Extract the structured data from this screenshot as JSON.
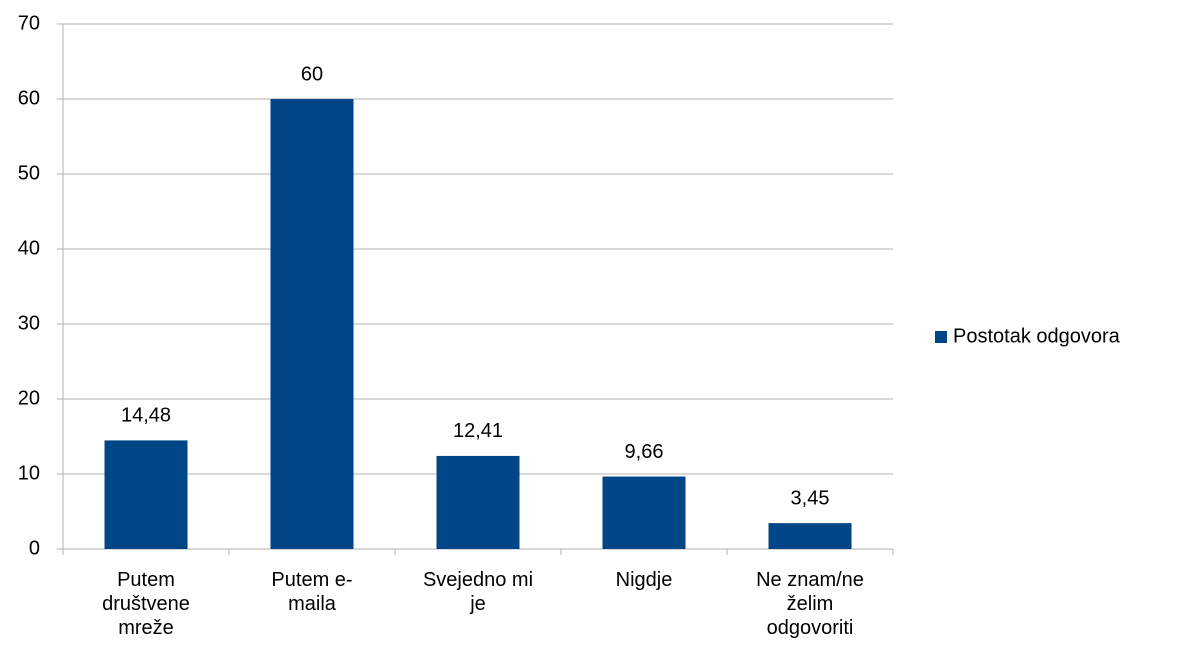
{
  "chart_data": {
    "type": "bar",
    "categories": [
      "Putem društvene mreže",
      "Putem e-maila",
      "Svejedno mi je",
      "Nigdje",
      "Ne znam/ne želim odgovoriti"
    ],
    "series": [
      {
        "name": "Postotak odgovora",
        "color": "#004586",
        "values": [
          14.48,
          60,
          12.41,
          9.66,
          3.45
        ],
        "value_labels": [
          "14,48",
          "60",
          "12,41",
          "9,66",
          "3,45"
        ]
      }
    ],
    "ylim": [
      0,
      70
    ],
    "yticks": [
      0,
      10,
      20,
      30,
      40,
      50,
      60,
      70
    ],
    "grid": true,
    "legend": "right"
  }
}
